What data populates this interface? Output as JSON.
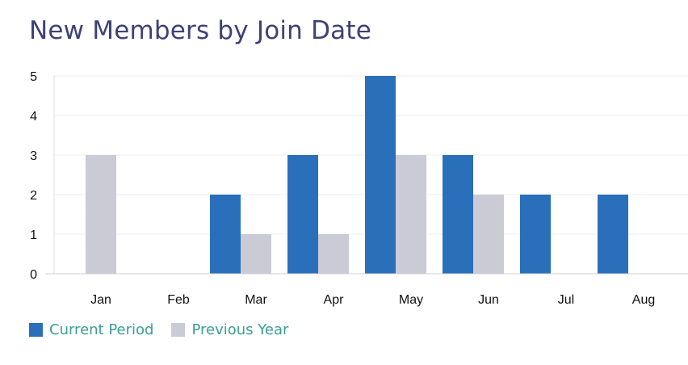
{
  "chart_data": {
    "type": "bar",
    "title": "New Members by Join Date",
    "categories": [
      "Jan",
      "Feb",
      "Mar",
      "Apr",
      "May",
      "Jun",
      "Jul",
      "Aug"
    ],
    "series": [
      {
        "name": "Current Period",
        "color": "#2a6fba",
        "values": [
          0,
          0,
          2,
          3,
          5,
          3,
          2,
          2
        ]
      },
      {
        "name": "Previous Year",
        "color": "#cbcbd6",
        "values": [
          3,
          0,
          1,
          1,
          3,
          2,
          0,
          0
        ]
      }
    ],
    "yticks": [
      "0",
      "1",
      "2",
      "3",
      "4",
      "5"
    ],
    "ylim": [
      0,
      5
    ],
    "grid": true,
    "legend": "bottom-left"
  }
}
